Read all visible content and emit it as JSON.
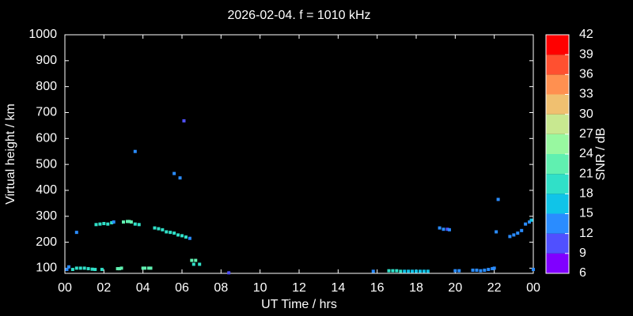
{
  "chart_data": {
    "type": "scatter",
    "title": "2026-02-04. f = 1010 kHz",
    "x_label": "UT Time / hrs",
    "y_label": "Virtual height / km",
    "xlim": [
      0,
      24
    ],
    "ylim": [
      80,
      1000
    ],
    "xticks": [
      {
        "value": 0,
        "label": "00"
      },
      {
        "value": 2,
        "label": "02"
      },
      {
        "value": 4,
        "label": "04"
      },
      {
        "value": 6,
        "label": "06"
      },
      {
        "value": 8,
        "label": "08"
      },
      10,
      12,
      14,
      16,
      18,
      20,
      22,
      {
        "value": 24,
        "label": "00"
      }
    ],
    "yticks": [
      100,
      200,
      300,
      400,
      500,
      600,
      700,
      800,
      900,
      1000
    ],
    "x": [
      0.1,
      0.2,
      0.4,
      0.6,
      0.8,
      1.0,
      1.2,
      1.4,
      1.55,
      1.9,
      2.7,
      2.8,
      2.9,
      4.0,
      4.1,
      4.3,
      4.4,
      0.6,
      1.6,
      1.8,
      2.0,
      2.2,
      2.4,
      2.5,
      3.0,
      3.2,
      3.3,
      3.4,
      3.6,
      3.8,
      4.6,
      4.8,
      5.0,
      5.2,
      5.4,
      5.6,
      5.8,
      6.0,
      6.2,
      6.4,
      6.5,
      6.7,
      6.6,
      6.9,
      3.6,
      5.6,
      5.9,
      6.1,
      8.4,
      15.8,
      16.6,
      16.8,
      17.0,
      17.2,
      17.4,
      17.6,
      17.8,
      18.0,
      18.2,
      18.4,
      18.6,
      19.2,
      19.4,
      19.6,
      19.7,
      20.0,
      20.2,
      20.9,
      21.1,
      21.3,
      21.5,
      21.7,
      21.9,
      22.0,
      22.1,
      22.2,
      22.8,
      23.0,
      23.2,
      23.4,
      23.6,
      23.8,
      23.9,
      24.0
    ],
    "y": [
      95,
      105,
      95,
      100,
      100,
      100,
      98,
      96,
      95,
      95,
      98,
      98,
      100,
      100,
      100,
      100,
      100,
      238,
      268,
      270,
      272,
      270,
      275,
      278,
      278,
      280,
      280,
      278,
      270,
      268,
      255,
      252,
      248,
      240,
      238,
      235,
      228,
      225,
      220,
      215,
      130,
      130,
      115,
      115,
      550,
      465,
      448,
      668,
      82,
      88,
      90,
      90,
      90,
      88,
      88,
      88,
      88,
      88,
      88,
      88,
      88,
      255,
      250,
      250,
      248,
      90,
      90,
      92,
      92,
      90,
      92,
      95,
      98,
      100,
      240,
      365,
      222,
      228,
      235,
      245,
      270,
      278,
      285,
      95
    ],
    "snr": [
      14,
      14,
      18,
      20,
      20,
      20,
      20,
      20,
      20,
      20,
      21,
      21,
      21,
      21,
      21,
      21,
      21,
      12,
      20,
      20,
      20,
      20,
      20,
      13,
      21,
      21,
      22,
      21,
      20,
      20,
      20,
      20,
      19,
      19,
      19,
      19,
      19,
      19,
      18,
      13,
      21,
      21,
      20,
      20,
      12,
      12,
      12,
      11,
      11,
      12,
      19,
      19,
      18,
      18,
      17,
      17,
      17,
      17,
      17,
      16,
      16,
      12,
      12,
      11,
      13,
      13,
      13,
      13,
      13,
      13,
      14,
      14,
      14,
      14,
      13,
      13,
      12,
      13,
      13,
      14,
      14,
      14,
      15,
      12
    ],
    "colorbar": {
      "label": "SNR / dB",
      "lim": [
        6,
        42
      ],
      "ticks": [
        6,
        9,
        12,
        15,
        18,
        21,
        24,
        27,
        30,
        33,
        36,
        39,
        42
      ],
      "colors": [
        "#8000ff",
        "#5050ff",
        "#2a8cff",
        "#10c4e8",
        "#30e0c8",
        "#60f0b0",
        "#98f8a0",
        "#c8e890",
        "#f0c070",
        "#ff9050",
        "#ff5030",
        "#ff0000"
      ]
    }
  }
}
